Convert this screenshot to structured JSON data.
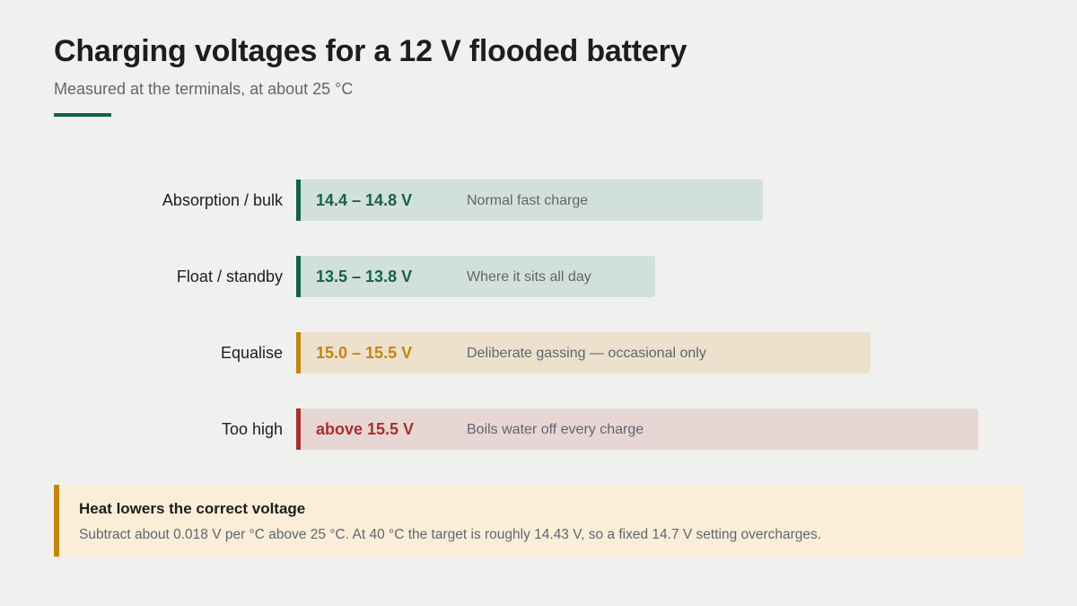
{
  "header": {
    "title": "Charging voltages for a 12 V flooded battery",
    "subtitle": "Measured at the terminals, at about 25 °C"
  },
  "rows": [
    {
      "label": "Absorption / bulk",
      "range": "14.4 – 14.8 V",
      "note": "Normal fast charge",
      "accent_color": "#15614f",
      "fill_color": "#d2e0da",
      "text_color": "#15614f"
    },
    {
      "label": "Float / standby",
      "range": "13.5 – 13.8 V",
      "note": "Where it sits all day",
      "accent_color": "#15614f",
      "fill_color": "#d2e0da",
      "text_color": "#15614f"
    },
    {
      "label": "Equalise",
      "range": "15.0 – 15.5 V",
      "note": "Deliberate gassing — occasional only",
      "accent_color": "#c4850f",
      "fill_color": "#ede1cd",
      "text_color": "#c4850f"
    },
    {
      "label": "Too high",
      "range": "above 15.5 V",
      "note": "Boils water off every charge",
      "accent_color": "#a9302e",
      "fill_color": "#e7d6d3",
      "text_color": "#a9302e"
    }
  ],
  "callout": {
    "title": "Heat lowers the correct voltage",
    "body": "Subtract about 0.018 V per °C above 25 °C. At 40 °C the target is roughly 14.43 V, so a fixed 14.7 V setting overcharges.",
    "accent_color": "#c4850f",
    "fill_color": "#fbeed8"
  }
}
